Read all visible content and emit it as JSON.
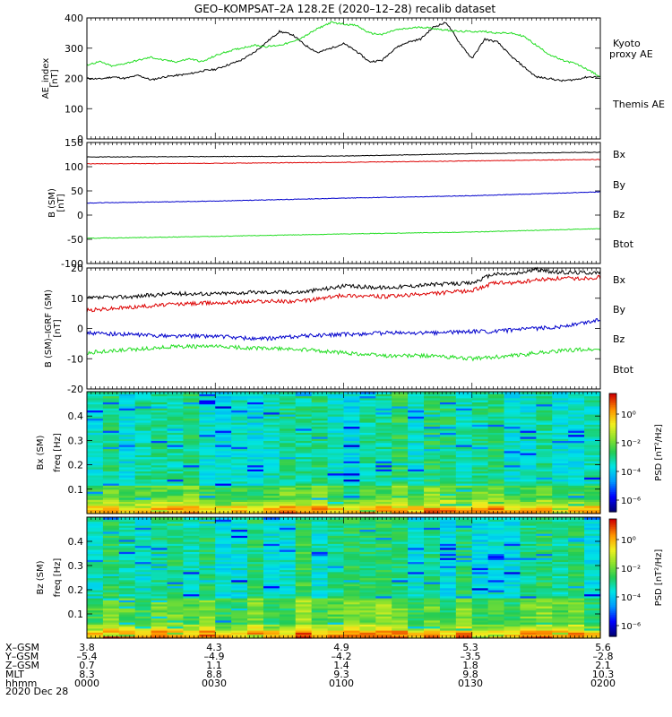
{
  "title": "GEO–KOMPSAT–2A 128.2E (2020–12–28) recalib dataset",
  "colors": {
    "black": "#000000",
    "green": "#22dd22",
    "red": "#dd0000",
    "blue": "#0000cc"
  },
  "chart_data": [
    {
      "type": "line",
      "id": "ae",
      "ylabel": "AE_index [nT]",
      "ylim": [
        0,
        400
      ],
      "yticks": [
        0,
        100,
        200,
        300,
        400
      ],
      "xlim": [
        0,
        120
      ],
      "legend": [
        "Kyoto proxy AE",
        "Themis AE"
      ],
      "legend_labels": {
        "kyoto": "Kyoto\nproxy AE",
        "themis": "Themis AE"
      },
      "series": [
        {
          "name": "Themis AE",
          "color": "black",
          "x": [
            0,
            3,
            6,
            9,
            12,
            15,
            18,
            21,
            24,
            27,
            30,
            33,
            36,
            39,
            42,
            45,
            48,
            51,
            54,
            57,
            60,
            63,
            66,
            69,
            72,
            75,
            78,
            81,
            84,
            87,
            90,
            93,
            96,
            99,
            102,
            105,
            108,
            111,
            114,
            117,
            120
          ],
          "y": [
            200,
            198,
            205,
            200,
            210,
            195,
            205,
            210,
            215,
            225,
            230,
            245,
            260,
            285,
            320,
            355,
            345,
            310,
            285,
            300,
            315,
            290,
            255,
            260,
            300,
            320,
            330,
            370,
            385,
            320,
            265,
            330,
            320,
            275,
            240,
            205,
            200,
            192,
            196,
            205,
            205
          ]
        },
        {
          "name": "Kyoto proxy AE",
          "color": "green",
          "x": [
            0,
            3,
            6,
            9,
            12,
            15,
            18,
            21,
            24,
            27,
            30,
            33,
            36,
            39,
            42,
            45,
            48,
            51,
            54,
            57,
            60,
            63,
            66,
            69,
            72,
            75,
            78,
            81,
            84,
            87,
            90,
            93,
            96,
            99,
            102,
            105,
            108,
            111,
            114,
            117,
            120
          ],
          "y": [
            245,
            255,
            240,
            250,
            260,
            270,
            260,
            255,
            265,
            255,
            275,
            290,
            300,
            310,
            305,
            310,
            320,
            340,
            365,
            385,
            380,
            375,
            350,
            345,
            360,
            365,
            370,
            365,
            360,
            355,
            355,
            355,
            350,
            350,
            340,
            310,
            280,
            260,
            250,
            230,
            205
          ]
        }
      ]
    },
    {
      "type": "line",
      "id": "bsm",
      "ylabel": "B (SM) [nT]",
      "ylim": [
        -100,
        150
      ],
      "yticks": [
        -100,
        -50,
        0,
        50,
        100,
        150
      ],
      "xlim": [
        0,
        120
      ],
      "legend": [
        "Bx",
        "By",
        "Bz",
        "Btot"
      ],
      "series": [
        {
          "name": "Btot",
          "color": "black",
          "x": [
            0,
            30,
            60,
            90,
            120
          ],
          "y": [
            120,
            121,
            122,
            127,
            130
          ]
        },
        {
          "name": "Bz",
          "color": "red",
          "x": [
            0,
            30,
            60,
            90,
            120
          ],
          "y": [
            106,
            107,
            109,
            112,
            115
          ]
        },
        {
          "name": "Bx",
          "color": "blue",
          "x": [
            0,
            30,
            60,
            90,
            120
          ],
          "y": [
            25,
            29,
            35,
            40,
            48
          ]
        },
        {
          "name": "By",
          "color": "green",
          "x": [
            0,
            30,
            60,
            90,
            120
          ],
          "y": [
            -48,
            -44,
            -39,
            -35,
            -28
          ]
        }
      ]
    },
    {
      "type": "line",
      "id": "bigrf",
      "ylabel": "B (SM)–IGRF (SM) [nT]",
      "ylim": [
        -20,
        20
      ],
      "yticks": [
        -20,
        -10,
        0,
        10,
        20
      ],
      "xlim": [
        0,
        120
      ],
      "legend": [
        "Bx",
        "By",
        "Bz",
        "Btot"
      ],
      "series": [
        {
          "name": "Btot",
          "color": "black",
          "x": [
            0,
            10,
            20,
            30,
            40,
            50,
            60,
            70,
            80,
            90,
            95,
            100,
            105,
            110,
            115,
            120
          ],
          "y": [
            10,
            10.5,
            11.5,
            11.5,
            12,
            12,
            14,
            13.5,
            14.5,
            15,
            18,
            18,
            19.5,
            18.5,
            18.5,
            18.5
          ]
        },
        {
          "name": "Bz",
          "color": "red",
          "x": [
            0,
            10,
            20,
            30,
            40,
            50,
            60,
            70,
            80,
            90,
            95,
            100,
            105,
            110,
            115,
            120
          ],
          "y": [
            6,
            7,
            8,
            8.5,
            9,
            9,
            11,
            10.5,
            11.5,
            12.5,
            15,
            15,
            16,
            16.5,
            16.5,
            17
          ]
        },
        {
          "name": "Bx",
          "color": "blue",
          "x": [
            0,
            10,
            20,
            30,
            40,
            50,
            60,
            70,
            80,
            90,
            95,
            100,
            105,
            110,
            115,
            120
          ],
          "y": [
            -1.5,
            -2,
            -2.5,
            -2.5,
            -3.5,
            -2.5,
            -2,
            -1.5,
            -1.5,
            -1,
            -1,
            -0.5,
            0,
            0.5,
            1.5,
            3
          ]
        },
        {
          "name": "By",
          "color": "green",
          "x": [
            0,
            10,
            20,
            30,
            40,
            50,
            60,
            70,
            80,
            90,
            95,
            100,
            105,
            110,
            115,
            120
          ],
          "y": [
            -8,
            -7,
            -6,
            -6,
            -6.5,
            -7,
            -8,
            -9,
            -9,
            -10,
            -9.5,
            -9,
            -8,
            -7.5,
            -7,
            -7
          ]
        }
      ]
    },
    {
      "type": "heatmap",
      "id": "bxpsd",
      "ylabel": "Bx (SM) freq [Hz]",
      "ylim": [
        0,
        0.5
      ],
      "yticks": [
        0.1,
        0.2,
        0.3,
        0.4
      ],
      "xlim": [
        0,
        120
      ],
      "colorbar_label": "PSD [nT²/Hz]",
      "colorbar_ticks": [
        "10⁰",
        "10⁻²",
        "10⁻⁴",
        "10⁻⁶"
      ]
    },
    {
      "type": "heatmap",
      "id": "bzpsd",
      "ylabel": "Bz (SM) freq [Hz]",
      "ylim": [
        0,
        0.5
      ],
      "yticks": [
        0.1,
        0.2,
        0.3,
        0.4
      ],
      "xlim": [
        0,
        120
      ],
      "colorbar_label": "PSD [nT²/Hz]",
      "colorbar_ticks": [
        "10⁰",
        "10⁻²",
        "10⁻⁴",
        "10⁻⁶"
      ]
    }
  ],
  "ephemeris": {
    "labels": [
      "X–GSM",
      "Y–GSM",
      "Z–GSM",
      "MLT",
      "hhmm"
    ],
    "columns": [
      {
        "t": 0,
        "x": "3.8",
        "y": "–5.4",
        "z": "0.7",
        "mlt": "8.3",
        "hhmm": "0000"
      },
      {
        "t": 30,
        "x": "4.3",
        "y": "–4.9",
        "z": "1.1",
        "mlt": "8.8",
        "hhmm": "0030"
      },
      {
        "t": 60,
        "x": "4.9",
        "y": "–4.2",
        "z": "1.4",
        "mlt": "9.3",
        "hhmm": "0100"
      },
      {
        "t": 90,
        "x": "5.3",
        "y": "–3.5",
        "z": "1.8",
        "mlt": "9.8",
        "hhmm": "0130"
      },
      {
        "t": 120,
        "x": "5.6",
        "y": "–2.8",
        "z": "2.1",
        "mlt": "10.3",
        "hhmm": "0200"
      }
    ],
    "date": "2020 Dec 28"
  }
}
